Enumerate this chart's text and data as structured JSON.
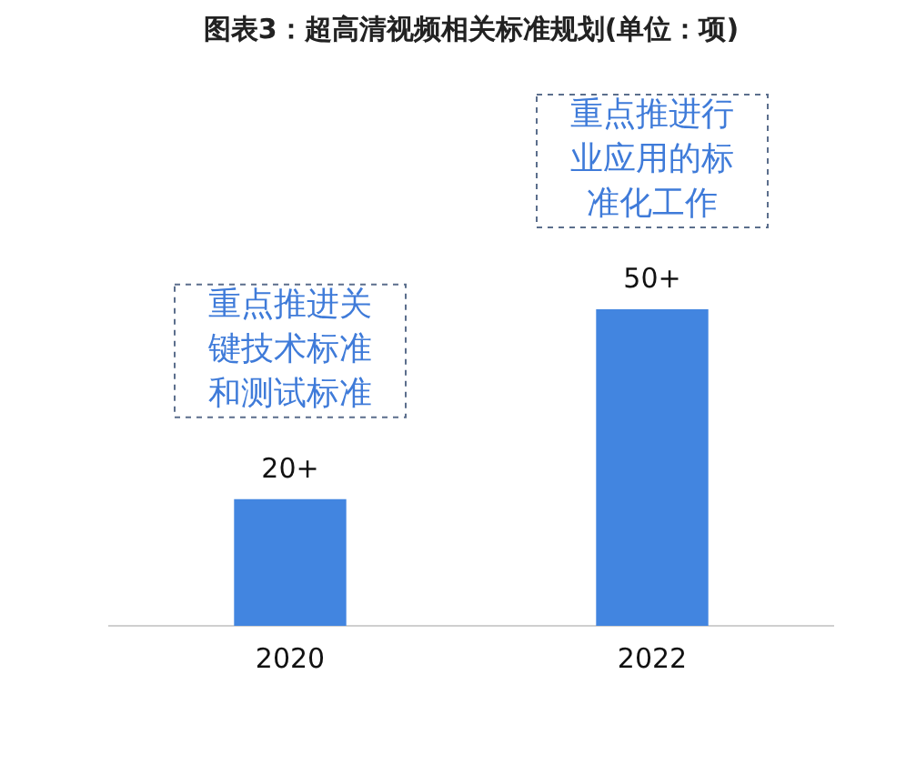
{
  "chart_data": {
    "type": "bar",
    "title": "图表3：超高清视频相关标准规划(单位：项)",
    "categories": [
      "2020",
      "2022"
    ],
    "values": [
      20,
      50
    ],
    "value_labels": [
      "20+",
      "50+"
    ],
    "color": "#4285e0",
    "grid": false,
    "legend": false,
    "annotations": [
      "重点推进关键技术标准和测试标准",
      "重点推进行业应用的标准化工作"
    ]
  }
}
